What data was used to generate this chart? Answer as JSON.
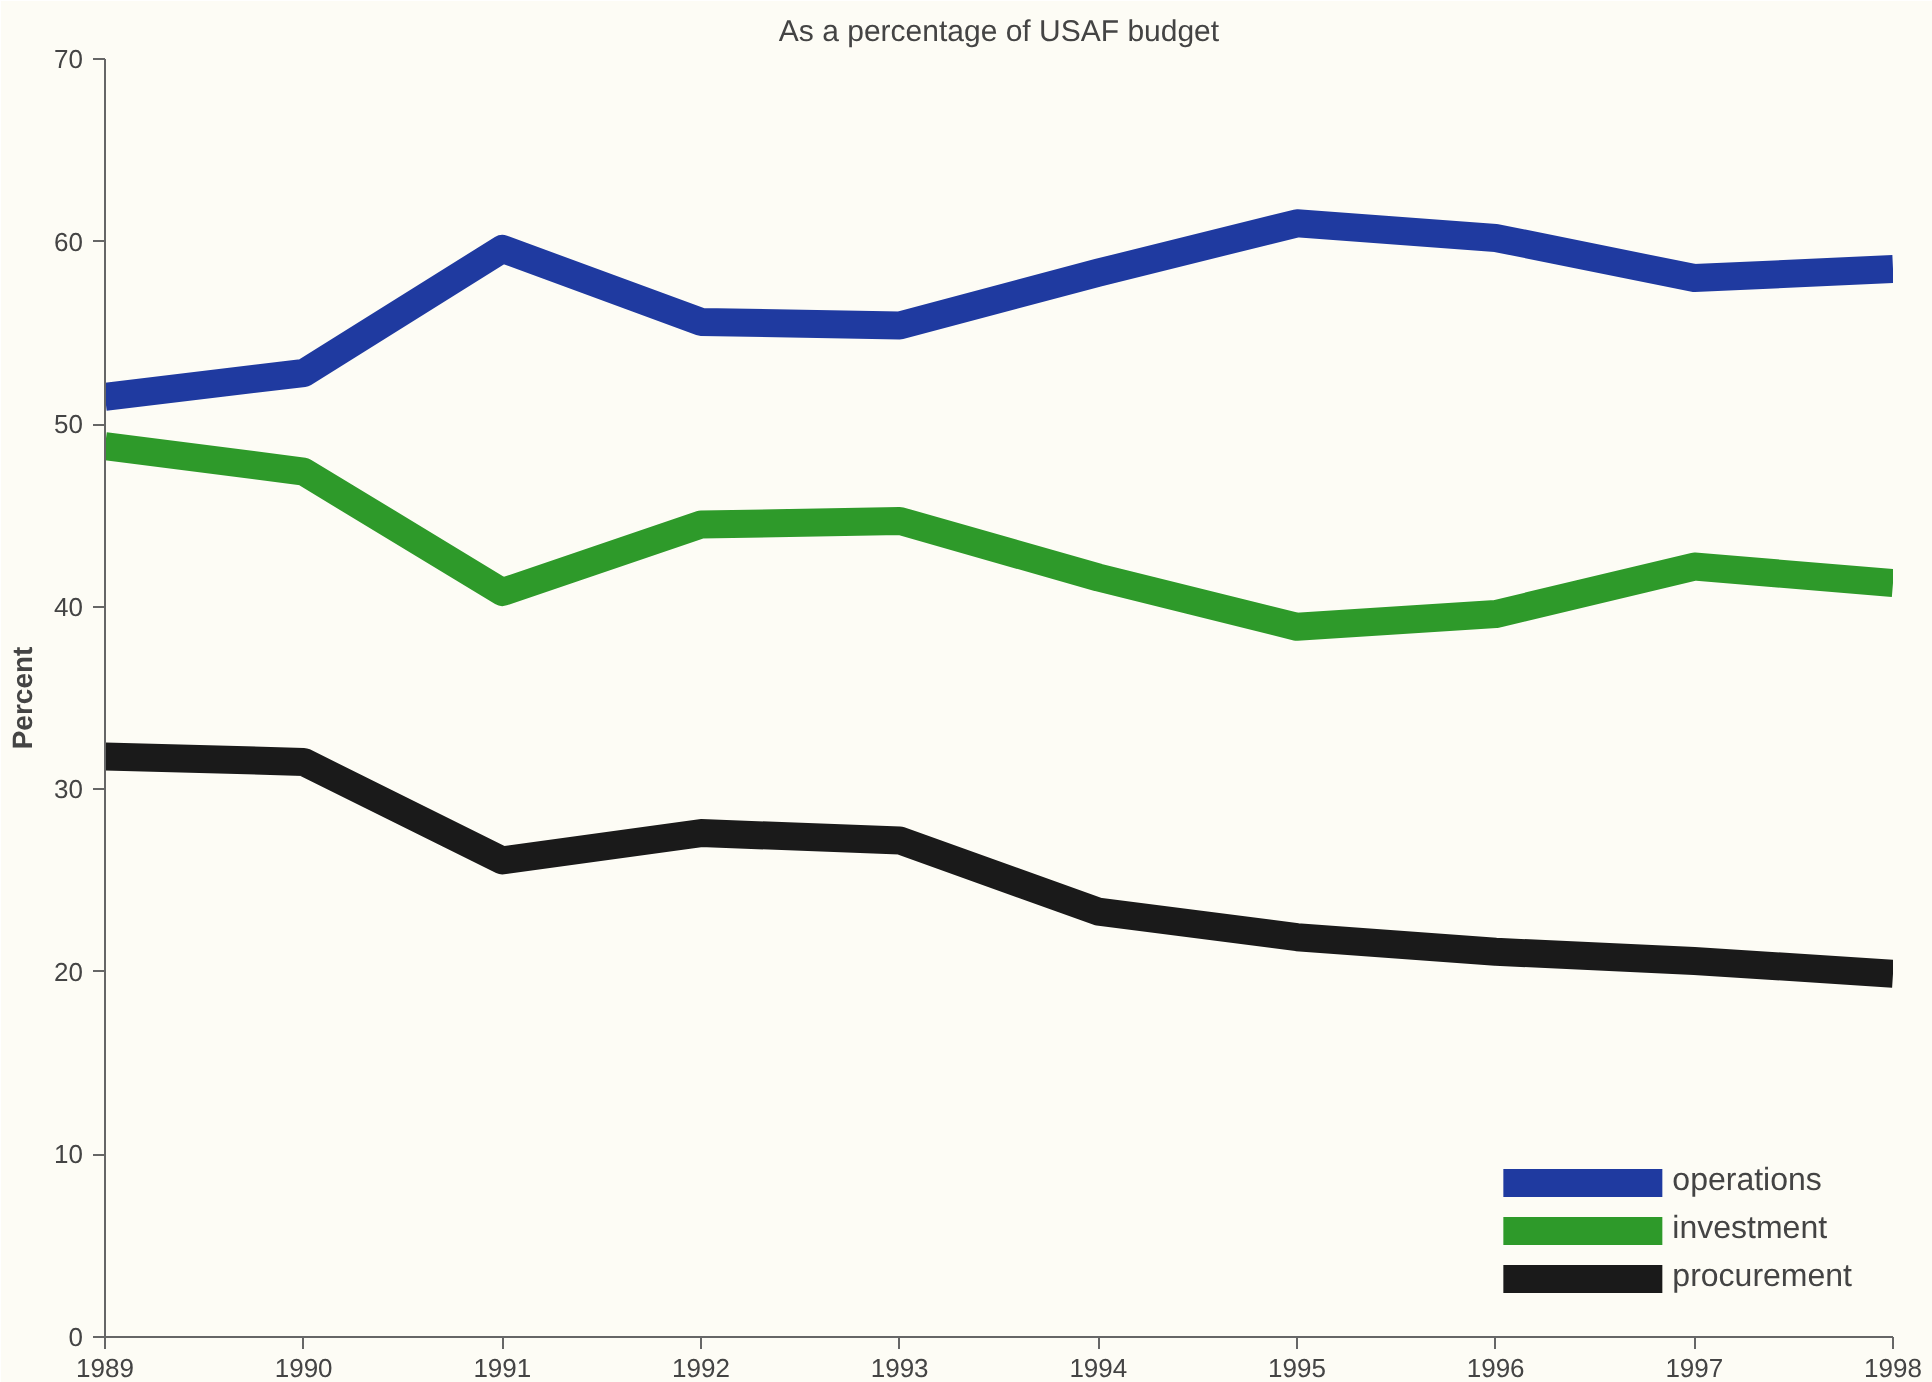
{
  "chart_data": {
    "type": "line",
    "title": "As a percentage of USAF budget",
    "ylabel": "Percent",
    "x": [
      1989,
      1990,
      1991,
      1992,
      1993,
      1994,
      1995,
      1996,
      1997,
      1998
    ],
    "xlim": [
      1989,
      1998
    ],
    "xticks": [
      1989,
      1990,
      1991,
      1992,
      1993,
      1994,
      1995,
      1996,
      1997,
      1998
    ],
    "ylim": [
      0,
      70
    ],
    "yticks": [
      0,
      10,
      20,
      30,
      40,
      50,
      60,
      70
    ],
    "grid": false,
    "legend": "bottom right",
    "marker": "none",
    "line_style": "solid",
    "series": [
      {
        "name": "operations",
        "color": "#1f3aa0",
        "values": [
          51.5,
          52.8,
          59.6,
          55.6,
          55.4,
          58.3,
          61.0,
          60.2,
          58.0,
          58.5
        ]
      },
      {
        "name": "investment",
        "color": "#2e9a2a",
        "values": [
          48.8,
          47.4,
          40.8,
          44.5,
          44.7,
          41.6,
          38.9,
          39.6,
          42.2,
          41.3
        ]
      },
      {
        "name": "procurement",
        "color": "#1a1a1a",
        "values": [
          31.8,
          31.5,
          26.1,
          27.6,
          27.2,
          23.3,
          21.9,
          21.1,
          20.6,
          19.9
        ]
      }
    ]
  }
}
